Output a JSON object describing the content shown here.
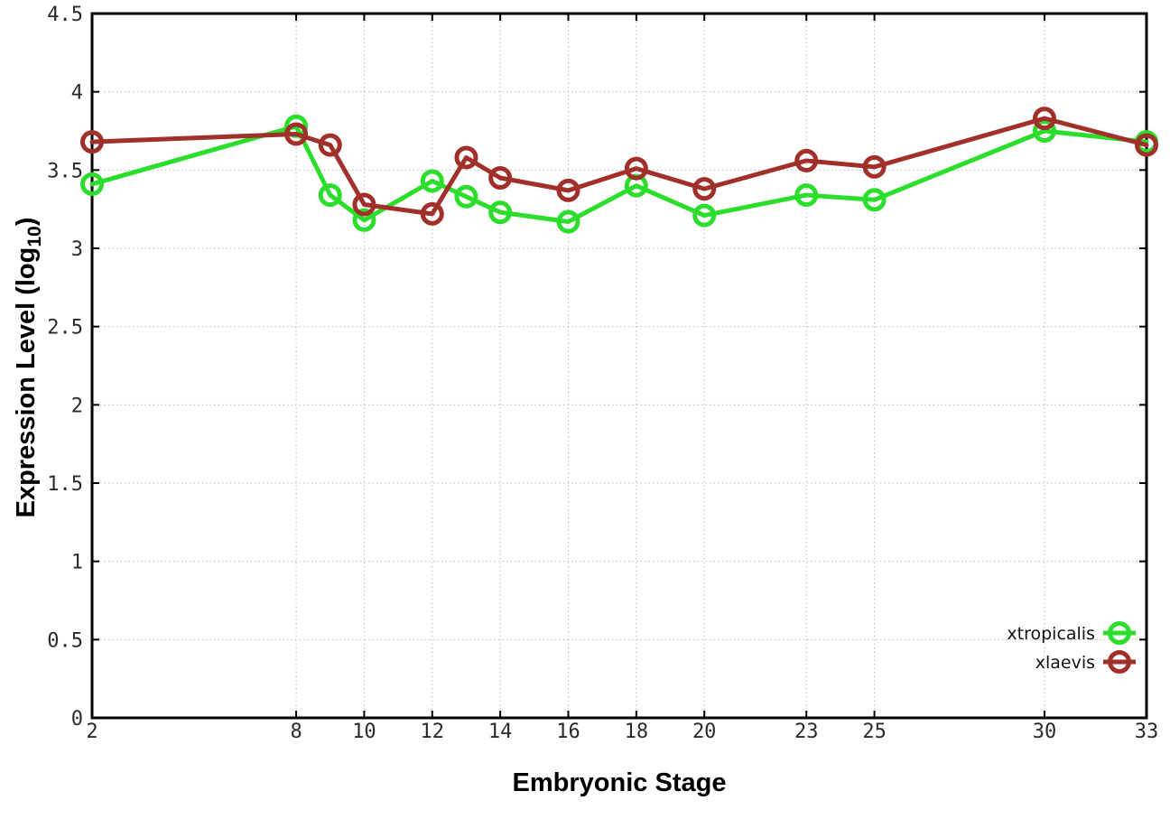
{
  "chart_data": {
    "type": "line",
    "title": "",
    "xlabel": "Embryonic Stage",
    "ylabel": "Expression Level (log10)",
    "ylabel_parts": {
      "pre": "Expression Level (log",
      "sub": "10",
      "post": ")"
    },
    "xlim": [
      2,
      33
    ],
    "ylim": [
      0,
      4.5
    ],
    "grid": true,
    "legend_position": "bottom-right",
    "x_tick_values": [
      2,
      8,
      10,
      12,
      14,
      16,
      18,
      20,
      23,
      25,
      30,
      33
    ],
    "x_tick_labels": [
      "2",
      "8",
      "10",
      "12",
      "14",
      "16",
      "18",
      "20",
      "23",
      "25",
      "30",
      "33"
    ],
    "y_tick_values": [
      0,
      0.5,
      1,
      1.5,
      2,
      2.5,
      3,
      3.5,
      4,
      4.5
    ],
    "y_tick_labels": [
      "0",
      "0.5",
      "1",
      "1.5",
      "2",
      "2.5",
      "3",
      "3.5",
      "4",
      "4.5"
    ],
    "x": [
      2,
      8,
      9,
      10,
      12,
      13,
      14,
      16,
      18,
      20,
      23,
      25,
      30,
      33
    ],
    "series": [
      {
        "name": "xtropicalis",
        "color": "#2cde2c",
        "marker": "open-circle",
        "values": [
          3.41,
          3.78,
          3.34,
          3.18,
          3.43,
          3.33,
          3.23,
          3.17,
          3.4,
          3.21,
          3.34,
          3.31,
          3.75,
          3.68
        ]
      },
      {
        "name": "xlaevis",
        "color": "#a1302a",
        "marker": "open-circle",
        "values": [
          3.68,
          3.73,
          3.66,
          3.28,
          3.22,
          3.58,
          3.45,
          3.37,
          3.51,
          3.38,
          3.56,
          3.52,
          3.83,
          3.66
        ]
      }
    ],
    "style": {
      "grid_color": "#bbbbbb",
      "axis_color": "#000000",
      "background": "#ffffff"
    }
  }
}
